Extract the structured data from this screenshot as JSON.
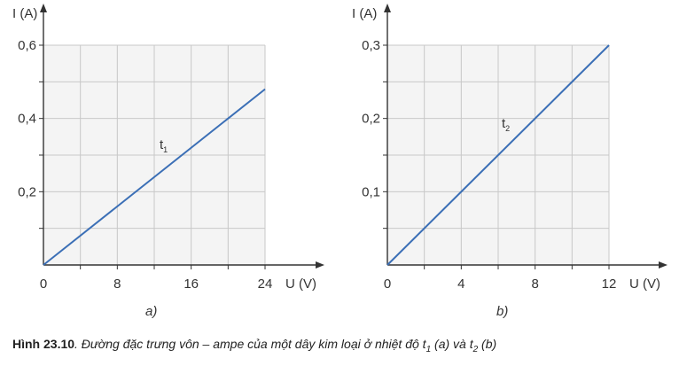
{
  "charts": [
    {
      "sublabel": "a)",
      "curve_label": "t",
      "curve_label_sub": "1",
      "ylabel": "I (A)",
      "xlabel": "U (V)"
    },
    {
      "sublabel": "b)",
      "curve_label": "t",
      "curve_label_sub": "2",
      "ylabel": "I (A)",
      "xlabel": "U (V)"
    }
  ],
  "chart_data": [
    {
      "type": "line",
      "title": "",
      "xlabel": "U (V)",
      "ylabel": "I (A)",
      "xlim": [
        0,
        24
      ],
      "ylim": [
        0,
        0.6
      ],
      "xticks": [
        "0",
        "8",
        "16",
        "24"
      ],
      "yticks": [
        "0,2",
        "0,4",
        "0,6"
      ],
      "grid": true,
      "series": [
        {
          "name": "t1",
          "x": [
            0,
            24
          ],
          "y": [
            0,
            0.48
          ]
        }
      ]
    },
    {
      "type": "line",
      "title": "",
      "xlabel": "U (V)",
      "ylabel": "I (A)",
      "xlim": [
        0,
        12
      ],
      "ylim": [
        0,
        0.3
      ],
      "xticks": [
        "0",
        "4",
        "8",
        "12"
      ],
      "yticks": [
        "0,1",
        "0,2",
        "0,3"
      ],
      "grid": true,
      "series": [
        {
          "name": "t2",
          "x": [
            0,
            12
          ],
          "y": [
            0,
            0.3
          ]
        }
      ]
    }
  ],
  "caption": {
    "prefix": "Hình 23.10",
    "text_1": ". Đường đặc trưng vôn – ampe của một dây kim loại ở nhiệt độ t",
    "sub_1": "1",
    "text_2": " (a) và t",
    "sub_2": "2",
    "text_3": " (b)"
  },
  "colors": {
    "line": "#3b6fb6",
    "grid": "#c8c8c8",
    "axis": "#333333",
    "panel": "#f4f4f4"
  }
}
